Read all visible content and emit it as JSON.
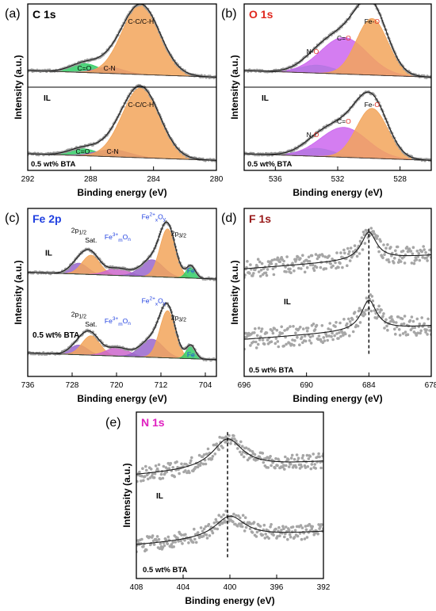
{
  "figure": {
    "axis_xlabel": "Binding energy (eV)",
    "axis_ylabel": "Intensity (a.u.)",
    "bottom_sample_label": "0.5 wt% BTA",
    "top_sample_label": "IL"
  },
  "chart_data": [
    {
      "panel": "(a)",
      "type": "line",
      "title": "C 1s",
      "title_color": "#000000",
      "xlabel": "Binding energy (eV)",
      "ylabel": "Intensity (a.u.)",
      "xlim": [
        292,
        280
      ],
      "xticks": [
        292,
        288,
        284,
        280
      ],
      "x_reversed": true,
      "y_ticks_labeled": false,
      "samples": [
        {
          "name": "IL",
          "peak_labels": [
            "C=O",
            "C-N",
            "C-C/C-H"
          ],
          "components": [
            {
              "center": 288.4,
              "height": 0.13,
              "width": 0.9,
              "color": "#33cc66"
            },
            {
              "center": 286.8,
              "height": 0.09,
              "width": 0.9,
              "color": "#9966cc"
            },
            {
              "center": 284.8,
              "height": 1.0,
              "width": 1.2,
              "color": "#f2a45a"
            }
          ]
        },
        {
          "name": "0.5 wt% BTA",
          "peak_labels": [
            "C=O",
            "C-N",
            "C-C/C-H"
          ],
          "components": [
            {
              "center": 288.5,
              "height": 0.1,
              "width": 0.9,
              "color": "#33cc66"
            },
            {
              "center": 286.6,
              "height": 0.1,
              "width": 1.1,
              "color": "#9966cc"
            },
            {
              "center": 284.8,
              "height": 1.0,
              "width": 1.2,
              "color": "#f2a45a"
            }
          ]
        }
      ]
    },
    {
      "panel": "(b)",
      "type": "line",
      "title": "O 1s",
      "title_color": "#e0281e",
      "xlabel": "Binding energy (eV)",
      "ylabel": "Intensity (a.u.)",
      "xlim": [
        538,
        526
      ],
      "xticks": [
        536,
        532,
        528
      ],
      "x_reversed": true,
      "y_ticks_labeled": false,
      "samples": [
        {
          "name": "IL",
          "peak_labels": [
            {
              "prefix": "N-",
              "accent": "O"
            },
            {
              "prefix": "C=",
              "accent": "O"
            },
            {
              "prefix": "Fe-",
              "accent": "O"
            }
          ],
          "components": [
            {
              "center": 533.3,
              "height": 0.12,
              "width": 1.1,
              "color": "#33cc99"
            },
            {
              "center": 531.6,
              "height": 0.55,
              "width": 1.5,
              "color": "#cc66ee"
            },
            {
              "center": 529.8,
              "height": 0.85,
              "width": 1.0,
              "color": "#f2a45a"
            }
          ]
        },
        {
          "name": "0.5 wt% BTA",
          "peak_labels": [
            {
              "prefix": "N-",
              "accent": "O"
            },
            {
              "prefix": "C=",
              "accent": "O"
            },
            {
              "prefix": "Fe-",
              "accent": "O"
            }
          ],
          "components": [
            {
              "center": 533.3,
              "height": 0.12,
              "width": 1.1,
              "color": "#33cc99"
            },
            {
              "center": 531.6,
              "height": 0.45,
              "width": 1.5,
              "color": "#cc66ee"
            },
            {
              "center": 529.8,
              "height": 0.75,
              "width": 1.0,
              "color": "#f2a45a"
            }
          ]
        }
      ]
    },
    {
      "panel": "(c)",
      "type": "line",
      "title": "Fe 2p",
      "title_color": "#2040e0",
      "xlabel": "Binding energy (eV)",
      "ylabel": "Intensity (a.u.)",
      "xlim": [
        736,
        702
      ],
      "xticks": [
        736,
        728,
        720,
        712,
        704
      ],
      "x_reversed": true,
      "y_ticks_labeled": false,
      "samples": [
        {
          "name": "IL",
          "peak_labels": [
            "2p1/2",
            "Sat.",
            "Fe3+mOn",
            "Fe2+xOy",
            "2p3/2",
            "Fe"
          ],
          "components": [
            {
              "center": 726.8,
              "height": 0.18,
              "width": 1.6,
              "color": "#9966cc"
            },
            {
              "center": 724.6,
              "height": 0.32,
              "width": 1.6,
              "color": "#f2a45a"
            },
            {
              "center": 719.8,
              "height": 0.12,
              "width": 2.0,
              "color": "#cc66cc"
            },
            {
              "center": 713.6,
              "height": 0.28,
              "width": 2.0,
              "color": "#9966cc"
            },
            {
              "center": 710.8,
              "height": 0.8,
              "width": 1.4,
              "color": "#f2a45a"
            },
            {
              "center": 706.6,
              "height": 0.2,
              "width": 0.8,
              "color": "#33cc66"
            }
          ]
        },
        {
          "name": "0.5 wt% BTA",
          "peak_labels": [
            "2p1/2",
            "Sat.",
            "Fe3+mOn",
            "Fe2+xOy",
            "2p3/2",
            "Fe"
          ],
          "components": [
            {
              "center": 726.8,
              "height": 0.16,
              "width": 1.6,
              "color": "#9966cc"
            },
            {
              "center": 724.6,
              "height": 0.32,
              "width": 1.6,
              "color": "#f2a45a"
            },
            {
              "center": 719.8,
              "height": 0.14,
              "width": 2.0,
              "color": "#cc66cc"
            },
            {
              "center": 713.6,
              "height": 0.3,
              "width": 2.0,
              "color": "#9966cc"
            },
            {
              "center": 710.8,
              "height": 0.78,
              "width": 1.4,
              "color": "#f2a45a"
            },
            {
              "center": 706.6,
              "height": 0.22,
              "width": 0.8,
              "color": "#33cc66"
            }
          ]
        }
      ]
    },
    {
      "panel": "(d)",
      "type": "scatter",
      "title": "F 1s",
      "title_color": "#991a1a",
      "xlabel": "Binding energy (eV)",
      "ylabel": "Intensity (a.u.)",
      "xlim": [
        696,
        678
      ],
      "xticks": [
        696,
        690,
        684,
        678
      ],
      "x_reversed": true,
      "y_ticks_labeled": false,
      "reference_line_x": 684,
      "samples": [
        {
          "name": "IL",
          "peak_center": 684,
          "peak_height": 0.55,
          "peak_width": 0.9,
          "noise": 0.35
        },
        {
          "name": "0.5 wt% BTA",
          "peak_center": 684,
          "peak_height": 0.6,
          "peak_width": 0.9,
          "noise": 0.4
        }
      ]
    },
    {
      "panel": "(e)",
      "type": "scatter",
      "title": "N 1s",
      "title_color": "#e020c0",
      "xlabel": "Binding energy (eV)",
      "ylabel": "Intensity (a.u.)",
      "xlim": [
        408,
        392
      ],
      "xticks": [
        408,
        404,
        400,
        396,
        392
      ],
      "x_reversed": true,
      "y_ticks_labeled": false,
      "reference_line_x": 400.2,
      "samples": [
        {
          "name": "IL",
          "peak_center": 400.2,
          "peak_height": 0.6,
          "peak_width": 1.6,
          "noise": 0.3
        },
        {
          "name": "0.5 wt% BTA",
          "peak_center": 400.0,
          "peak_height": 0.45,
          "peak_width": 1.6,
          "noise": 0.3
        }
      ]
    }
  ]
}
